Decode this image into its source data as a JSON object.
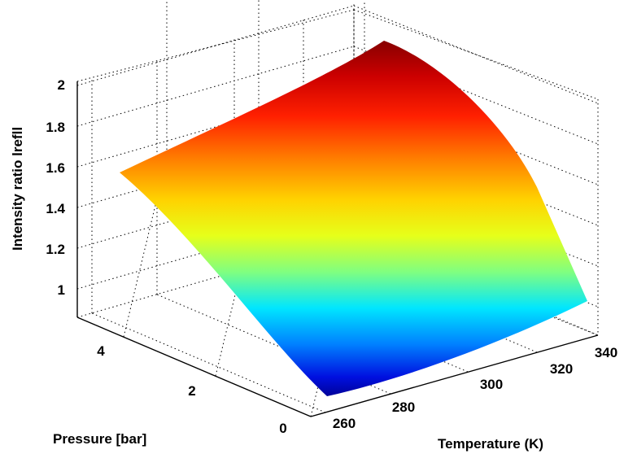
{
  "chart_data": {
    "type": "surface",
    "xlabel": "Temperature (K)",
    "ylabel": "Pressure [bar]",
    "zlabel": "Intensity ratio lrefll",
    "x_ticks": [
      "260",
      "280",
      "300",
      "320",
      "340"
    ],
    "y_ticks": [
      "0",
      "2",
      "4"
    ],
    "z_ticks": [
      "1",
      "1.2",
      "1.4",
      "1.6",
      "1.8",
      "2"
    ],
    "xlim": [
      250,
      340
    ],
    "ylim": [
      0,
      5
    ],
    "zlim": [
      0.9,
      2.1
    ],
    "grid": true,
    "colormap": "jet",
    "corners": [
      {
        "temperature": 260,
        "pressure": 0,
        "intensity_ratio": 0.9
      },
      {
        "temperature": 340,
        "pressure": 0,
        "intensity_ratio": 1.2
      },
      {
        "temperature": 260,
        "pressure": 5,
        "intensity_ratio": 1.75
      },
      {
        "temperature": 340,
        "pressure": 5,
        "intensity_ratio": 2.25
      }
    ],
    "colors": {
      "axes": "#000000",
      "background": "#ffffff"
    }
  }
}
